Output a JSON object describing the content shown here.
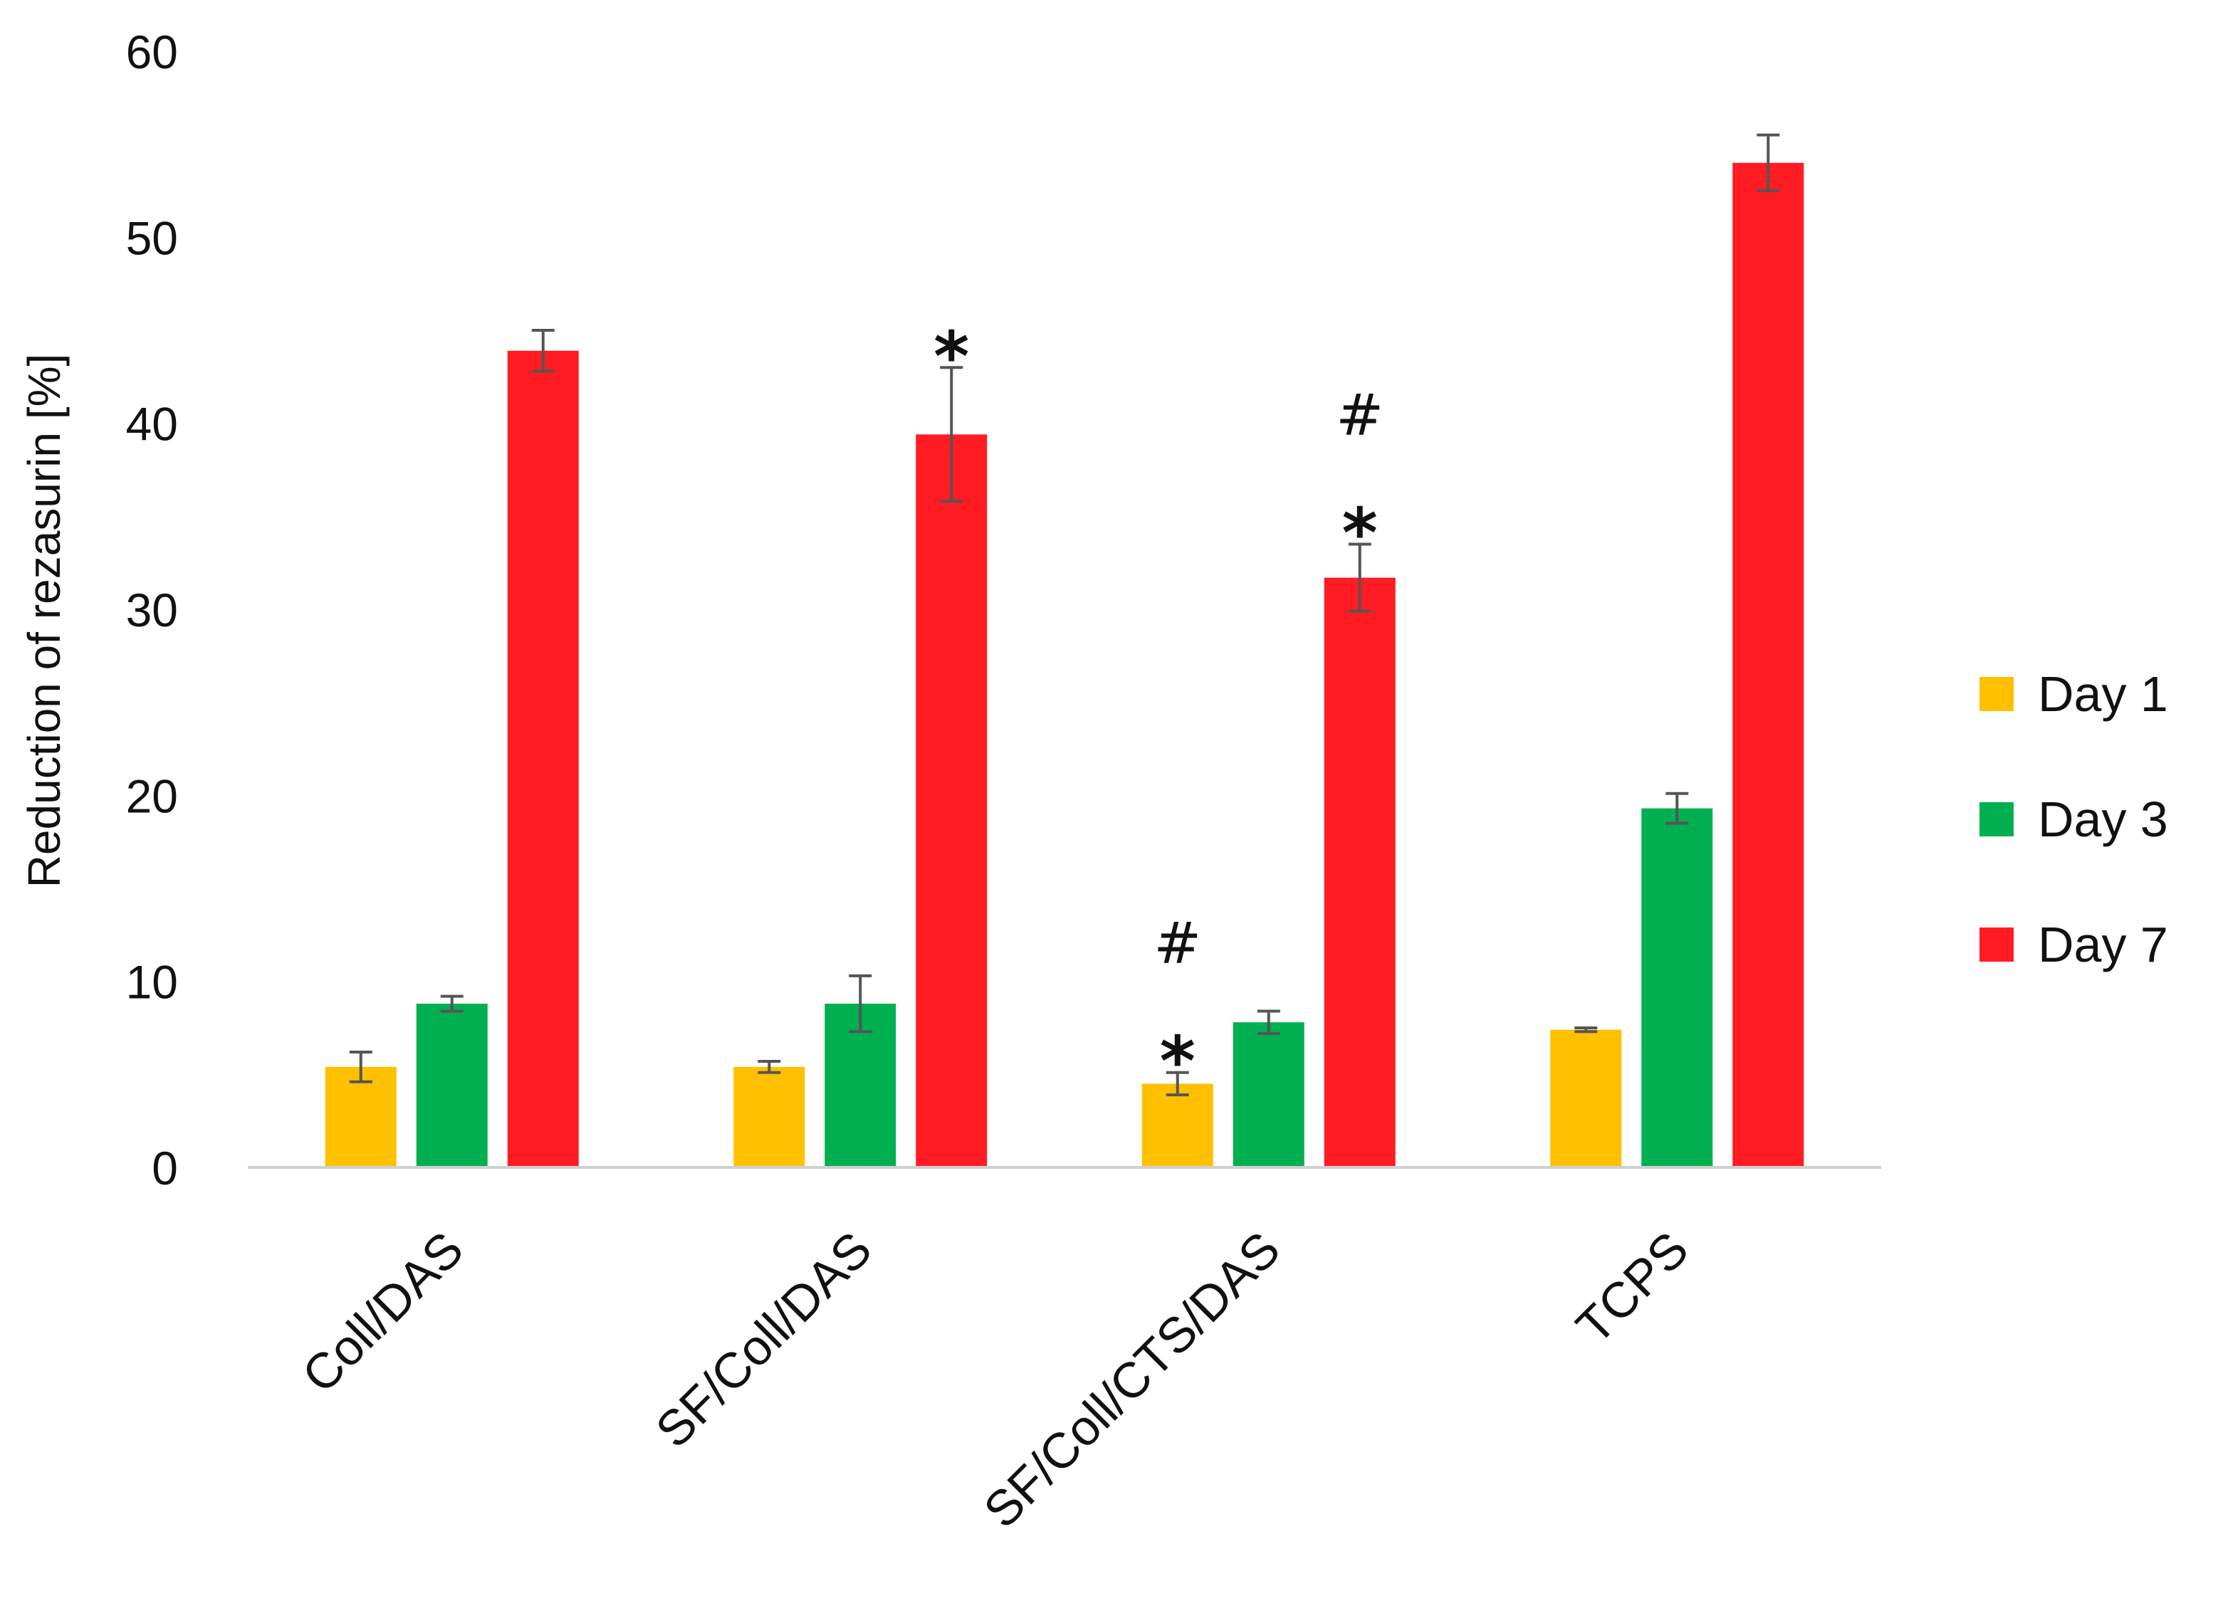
{
  "chart_data": {
    "type": "bar",
    "title": "",
    "xlabel": "",
    "ylabel": "Reduction of rezasurin [%]",
    "ylim": [
      0,
      60
    ],
    "yticks": [
      0,
      10,
      20,
      30,
      40,
      50,
      60
    ],
    "grid": false,
    "legend_position": "right",
    "categories": [
      "Coll/DAS",
      "SF/Coll/DAS",
      "SF/Coll/CTS/DAS",
      "TCPS"
    ],
    "series": [
      {
        "name": "Day 1",
        "color": "#FFC000",
        "values": [
          5.4,
          5.4,
          4.5,
          7.4
        ],
        "errors": [
          0.8,
          0.3,
          0.6,
          0.1
        ]
      },
      {
        "name": "Day 3",
        "color": "#00B050",
        "values": [
          8.8,
          8.8,
          7.8,
          19.3
        ],
        "errors": [
          0.4,
          1.5,
          0.6,
          0.8
        ]
      },
      {
        "name": "Day 7",
        "color": "#FF1C23",
        "values": [
          43.9,
          39.4,
          31.7,
          54.0
        ],
        "errors": [
          1.1,
          3.6,
          1.8,
          1.5
        ]
      }
    ],
    "annotations": [
      {
        "category": "SF/Coll/DAS",
        "series": "Day 7",
        "marks": [
          "*"
        ]
      },
      {
        "category": "SF/Coll/CTS/DAS",
        "series": "Day 7",
        "marks": [
          "*",
          "#"
        ]
      },
      {
        "category": "SF/Coll/CTS/DAS",
        "series": "Day 1",
        "marks": [
          "*",
          "#"
        ]
      }
    ]
  }
}
